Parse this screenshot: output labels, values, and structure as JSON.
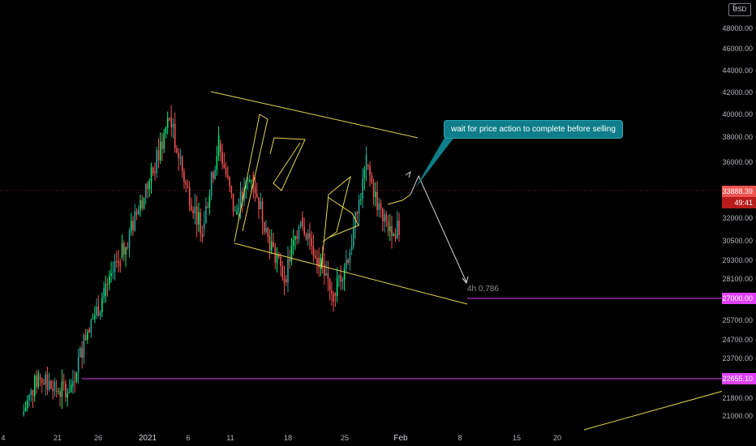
{
  "chart_data": {
    "type": "candlestick",
    "instrument_currency": "USD",
    "currency_badge": "USD",
    "top_price_clipped": "5",
    "y_axis_ticks": [
      "48000.00",
      "46000.00",
      "44000.00",
      "42000.00",
      "40000.00",
      "38000.00",
      "36000.00",
      "32000.00",
      "30500.00",
      "29300.00",
      "28100.00",
      "25700.00",
      "24700.00",
      "23700.00",
      "21800.00",
      "21000.00"
    ],
    "x_axis_ticks": [
      "4",
      "21",
      "26",
      "2021",
      "6",
      "11",
      "18",
      "25",
      "Feb",
      "8",
      "15",
      "20"
    ],
    "current_price": "33888.39",
    "countdown": "49:41",
    "horizontal_levels": [
      {
        "value": "27000.00",
        "color": "#e040fb"
      },
      {
        "value": "22655.10",
        "color": "#e040fb"
      }
    ],
    "annotation": "wait for price action to complete before selling",
    "fib_label": "4h 0.786",
    "colors": {
      "up": "#26a69a",
      "up_bright": "#00e676",
      "down": "#ef5350",
      "pattern_lines": "#e3d44a",
      "level_lines": "#e040fb",
      "price_line": "#ef5350",
      "callout": "#0f7e8a"
    },
    "price_path": [
      [
        "4",
        21000
      ],
      [
        "21",
        23700
      ],
      [
        "21",
        22700
      ],
      [
        "26",
        23000
      ],
      [
        "26",
        27000
      ],
      [
        "2021",
        29300
      ],
      [
        "2021",
        32000
      ],
      [
        "6",
        35000
      ],
      [
        "6",
        38000
      ],
      [
        "6",
        41800
      ],
      [
        "11",
        37000
      ],
      [
        "11",
        34000
      ],
      [
        "11",
        40000
      ],
      [
        "11",
        35000
      ],
      [
        "18",
        37800
      ],
      [
        "18",
        33500
      ],
      [
        "18",
        30500
      ],
      [
        "18",
        34800
      ],
      [
        "25",
        32000
      ],
      [
        "25",
        29500
      ],
      [
        "25",
        32500
      ],
      [
        "25",
        38500
      ],
      [
        "25",
        34500
      ],
      [
        "Feb",
        33888
      ]
    ]
  }
}
